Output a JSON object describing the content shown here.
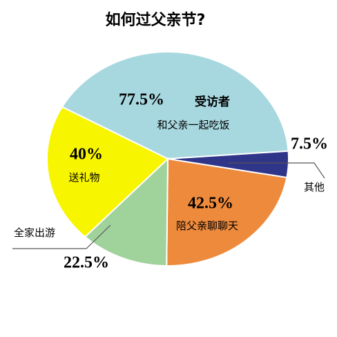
{
  "chart_data": {
    "type": "pie",
    "title": "如何过父亲节?",
    "categories": [
      "和父亲一起吃饭",
      "其他",
      "陪父亲聊聊天",
      "全家出游",
      "送礼物"
    ],
    "values": [
      77.5,
      7.5,
      42.5,
      22.5,
      40
    ],
    "value_labels": [
      "77.5%",
      "7.5%",
      "42.5%",
      "22.5%",
      "40%"
    ],
    "colors": [
      "#a8d8df",
      "#2f3589",
      "#ee8a3c",
      "#a0d29c",
      "#f8f500"
    ],
    "annotations": [
      "受访者"
    ]
  }
}
